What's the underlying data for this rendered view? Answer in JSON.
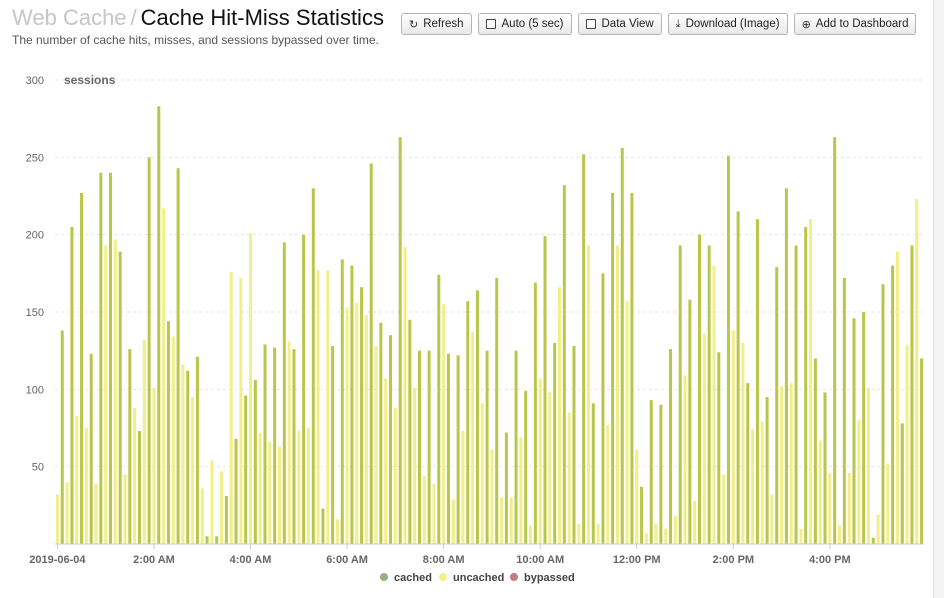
{
  "header": {
    "section": "Web Cache",
    "separator": "/",
    "title": "Cache Hit-Miss Statistics",
    "subtitle": "The number of cache hits, misses, and sessions bypassed over time."
  },
  "toolbar": {
    "refresh": "Refresh",
    "auto": "Auto (5 sec)",
    "data_view": "Data View",
    "download": "Download (Image)",
    "add_dashboard": "Add to Dashboard"
  },
  "colors": {
    "cached": "#93b183",
    "uncached": "#f2ef8a",
    "uncached_fill": "#b8c64a",
    "bypassed": "#c37d7d",
    "grid": "#e6e6e6",
    "axis_text": "#666666"
  },
  "chart_data": {
    "type": "bar",
    "stacked": true,
    "ylabel": "sessions",
    "ylim": [
      0,
      300
    ],
    "yticks": [
      50,
      100,
      150,
      200,
      250,
      300
    ],
    "ytick_labels": [
      "50",
      "100",
      "150",
      "200",
      "250",
      "300"
    ],
    "xtick_labels": [
      "2019-06-04",
      "2:00 AM",
      "4:00 AM",
      "6:00 AM",
      "8:00 AM",
      "10:00 AM",
      "12:00 PM",
      "2:00 PM",
      "4:00 PM"
    ],
    "xtick_bar_index": [
      0,
      20,
      40,
      60,
      80,
      100,
      120,
      140,
      160
    ],
    "grid": true,
    "legend_position": "bottom",
    "series": [
      {
        "name": "cached",
        "color": "#93b183"
      },
      {
        "name": "uncached",
        "color": "#f2ef8a"
      },
      {
        "name": "bypassed",
        "color": "#c37d7d"
      }
    ],
    "bar_interval_minutes": 6,
    "uncached_total": [
      32,
      138,
      40,
      205,
      83,
      227,
      75,
      123,
      39,
      240,
      193,
      240,
      197,
      189,
      45,
      126,
      88,
      73,
      132,
      250,
      101,
      283,
      217,
      144,
      134,
      243,
      116,
      112,
      95,
      121,
      36,
      5,
      54,
      5,
      47,
      31,
      176,
      68,
      172,
      96,
      201,
      106,
      72,
      129,
      66,
      127,
      63,
      195,
      131,
      126,
      73,
      200,
      75,
      230,
      177,
      23,
      177,
      128,
      16,
      184,
      153,
      180,
      156,
      166,
      148,
      246,
      128,
      143,
      107,
      135,
      88,
      263,
      192,
      145,
      101,
      125,
      44,
      125,
      39,
      174,
      155,
      123,
      29,
      122,
      73,
      157,
      137,
      164,
      91,
      125,
      61,
      172,
      30,
      72,
      30,
      125,
      69,
      99,
      12,
      169,
      107,
      199,
      98,
      130,
      166,
      232,
      85,
      128,
      13,
      252,
      193,
      91,
      13,
      175,
      77,
      227,
      193,
      256,
      157,
      227,
      61,
      37,
      7,
      93,
      13,
      90,
      10,
      126,
      18,
      193,
      109,
      158,
      28,
      200,
      136,
      193,
      180,
      124,
      45,
      251,
      138,
      215,
      130,
      104,
      74,
      210,
      79,
      95,
      32,
      179,
      102,
      230,
      104,
      193,
      10,
      205,
      210,
      120,
      67,
      98,
      46,
      263,
      12,
      172,
      46,
      146,
      80,
      150,
      101,
      4,
      19,
      168,
      52,
      180,
      189,
      78,
      129,
      193,
      223,
      120
    ],
    "cached": [
      0,
      0,
      0,
      0,
      0,
      0,
      0,
      0,
      0,
      0,
      0,
      0,
      0,
      0,
      0,
      0,
      0,
      0,
      0,
      0,
      0,
      0,
      0,
      0,
      0,
      0,
      0,
      0,
      0,
      0,
      0,
      0,
      0,
      0,
      0,
      0,
      0,
      0,
      0,
      0,
      0,
      0,
      0,
      0,
      0,
      0,
      0,
      0,
      0,
      0,
      0,
      0,
      0,
      0,
      0,
      0,
      0,
      0,
      0,
      0,
      0,
      0,
      0,
      0,
      0,
      0,
      0,
      0,
      0,
      0,
      0,
      0,
      0,
      0,
      0,
      0,
      0,
      0,
      0,
      0,
      0,
      0,
      0,
      0,
      0,
      0,
      0,
      0,
      0,
      0,
      0,
      0,
      0,
      0,
      0,
      0,
      0,
      0,
      0,
      0,
      0,
      0,
      0,
      0,
      0,
      0,
      0,
      0,
      0,
      0,
      0,
      0,
      0,
      0,
      0,
      0,
      0,
      0,
      0,
      0,
      0,
      0,
      0,
      0,
      0,
      0,
      0,
      0,
      0,
      0,
      0,
      0,
      0,
      0,
      0,
      0,
      0,
      0,
      0,
      0,
      0,
      0,
      0,
      0,
      0,
      0,
      0,
      0,
      0,
      0,
      0,
      0,
      0,
      0,
      0,
      0,
      0,
      0,
      0,
      0,
      0,
      0,
      0,
      0,
      0,
      0,
      0,
      0,
      0,
      0,
      0,
      0,
      0,
      0,
      0,
      0,
      0,
      0,
      0,
      0
    ]
  }
}
